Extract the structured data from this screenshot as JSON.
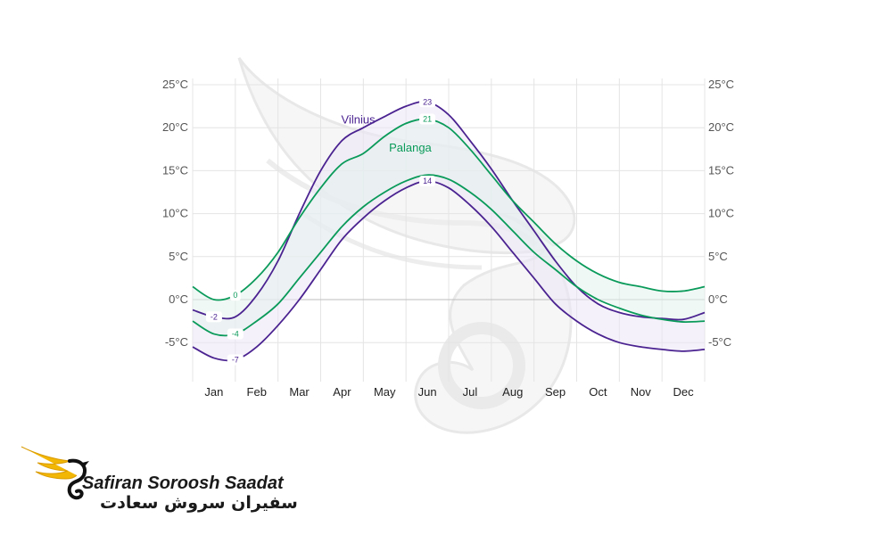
{
  "chart_data": {
    "type": "line",
    "title": "",
    "xlabel": "",
    "ylabel": "",
    "categories": [
      "Jan",
      "Feb",
      "Mar",
      "Apr",
      "May",
      "Jun",
      "Jul",
      "Aug",
      "Sep",
      "Oct",
      "Nov",
      "Dec"
    ],
    "y_ticks": [
      "-5°C",
      "0°C",
      "5°C",
      "10°C",
      "15°C",
      "20°C",
      "25°C"
    ],
    "y_tick_values": [
      -5,
      0,
      5,
      10,
      15,
      20,
      25
    ],
    "ylim": [
      -8.5,
      26
    ],
    "xlim": [
      0,
      12
    ],
    "grid": true,
    "series": [
      {
        "name": "Vilnius",
        "color": "#4b2391",
        "band_color": "#ece6f5",
        "high": [
          [
            0,
            -1.2
          ],
          [
            0.5,
            -2
          ],
          [
            1,
            -2
          ],
          [
            1.5,
            0.5
          ],
          [
            2,
            4.5
          ],
          [
            2.5,
            10
          ],
          [
            3,
            15
          ],
          [
            3.5,
            18.5
          ],
          [
            4,
            20
          ],
          [
            4.5,
            21.3
          ],
          [
            5,
            22.5
          ],
          [
            5.5,
            23
          ],
          [
            6,
            21.5
          ],
          [
            6.5,
            18.5
          ],
          [
            7,
            15.2
          ],
          [
            7.5,
            11.5
          ],
          [
            8,
            8
          ],
          [
            8.5,
            4.5
          ],
          [
            9,
            1.5
          ],
          [
            9.5,
            -0.5
          ],
          [
            10,
            -1.5
          ],
          [
            10.5,
            -2
          ],
          [
            11,
            -2.2
          ],
          [
            11.5,
            -2.3
          ],
          [
            12,
            -1.5
          ]
        ],
        "low": [
          [
            0,
            -5.5
          ],
          [
            0.5,
            -6.8
          ],
          [
            1,
            -7
          ],
          [
            1.5,
            -5.5
          ],
          [
            2,
            -3
          ],
          [
            2.5,
            0
          ],
          [
            3,
            3.5
          ],
          [
            3.5,
            7
          ],
          [
            4,
            9.5
          ],
          [
            4.5,
            11.5
          ],
          [
            5,
            13
          ],
          [
            5.5,
            13.8
          ],
          [
            6,
            13
          ],
          [
            6.5,
            11
          ],
          [
            7,
            8.5
          ],
          [
            7.5,
            5.5
          ],
          [
            8,
            2.5
          ],
          [
            8.5,
            -0.5
          ],
          [
            9,
            -2.5
          ],
          [
            9.5,
            -4
          ],
          [
            10,
            -5
          ],
          [
            10.5,
            -5.5
          ],
          [
            11,
            -5.8
          ],
          [
            11.5,
            -6
          ],
          [
            12,
            -5.8
          ]
        ]
      },
      {
        "name": "Palanga",
        "color": "#0a9a5a",
        "band_color": "#e4f3ec",
        "high": [
          [
            0,
            1.5
          ],
          [
            0.5,
            0
          ],
          [
            1,
            0.5
          ],
          [
            1.5,
            2.5
          ],
          [
            2,
            5.5
          ],
          [
            2.5,
            9.5
          ],
          [
            3,
            13
          ],
          [
            3.5,
            15.8
          ],
          [
            4,
            17
          ],
          [
            4.5,
            19
          ],
          [
            5,
            20.5
          ],
          [
            5.5,
            21
          ],
          [
            6,
            20
          ],
          [
            6.5,
            17.5
          ],
          [
            7,
            14.5
          ],
          [
            7.5,
            11.5
          ],
          [
            8,
            9
          ],
          [
            8.5,
            6.5
          ],
          [
            9,
            4.5
          ],
          [
            9.5,
            3
          ],
          [
            10,
            2
          ],
          [
            10.5,
            1.5
          ],
          [
            11,
            1
          ],
          [
            11.5,
            1
          ],
          [
            12,
            1.5
          ]
        ],
        "low": [
          [
            0,
            -2.5
          ],
          [
            0.5,
            -4
          ],
          [
            1,
            -4
          ],
          [
            1.5,
            -2.5
          ],
          [
            2,
            -0.5
          ],
          [
            2.5,
            2.5
          ],
          [
            3,
            5.5
          ],
          [
            3.5,
            8.5
          ],
          [
            4,
            10.8
          ],
          [
            4.5,
            12.5
          ],
          [
            5,
            13.8
          ],
          [
            5.5,
            14.5
          ],
          [
            6,
            14
          ],
          [
            6.5,
            12.5
          ],
          [
            7,
            10.5
          ],
          [
            7.5,
            8
          ],
          [
            8,
            5.5
          ],
          [
            8.5,
            3.5
          ],
          [
            9,
            1.5
          ],
          [
            9.5,
            0
          ],
          [
            10,
            -1
          ],
          [
            10.5,
            -1.8
          ],
          [
            11,
            -2.3
          ],
          [
            11.5,
            -2.6
          ],
          [
            12,
            -2.5
          ]
        ]
      }
    ],
    "series_labels": [
      {
        "series": "Vilnius",
        "text": "Vilnius"
      },
      {
        "series": "Palanga",
        "text": "Palanga"
      }
    ],
    "data_labels": [
      {
        "series": "Vilnius",
        "x": 5.5,
        "y": 23,
        "text": "23"
      },
      {
        "series": "Palanga",
        "x": 5.5,
        "y": 21,
        "text": "21"
      },
      {
        "series": "Vilnius",
        "x": 5.5,
        "y": 13.8,
        "text": "14"
      },
      {
        "series": "Palanga",
        "x": 1,
        "y": 0.5,
        "text": "0"
      },
      {
        "series": "Vilnius",
        "x": 0.5,
        "y": -2,
        "text": "-2"
      },
      {
        "series": "Palanga",
        "x": 1,
        "y": -4,
        "text": "-4"
      },
      {
        "series": "Vilnius",
        "x": 1,
        "y": -7,
        "text": "-7"
      }
    ]
  },
  "brand": {
    "name": "Safiran Soroosh Saadat",
    "name_fa": "سفیران سروش سعادت",
    "accent": "#f2b705"
  },
  "icons": {
    "logo": "golden-wing-swan-logo",
    "watermark": "wing-swan-watermark"
  }
}
